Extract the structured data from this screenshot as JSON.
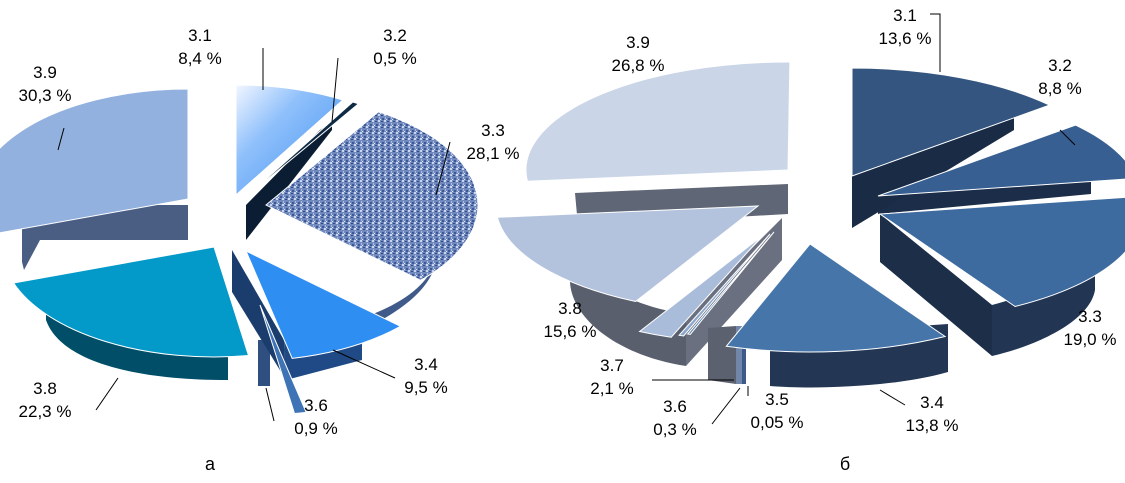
{
  "chart_data": [
    {
      "type": "pie",
      "caption": "а",
      "slices": [
        {
          "category": "3.1",
          "value": 8.4,
          "label": "8,4 %",
          "color": "#5fa2ee"
        },
        {
          "category": "3.2",
          "value": 0.5,
          "label": "0,5 %",
          "color": "#0e2a45"
        },
        {
          "category": "3.3",
          "value": 28.1,
          "label": "28,1 %",
          "color": "#7088bb"
        },
        {
          "category": "3.4",
          "value": 9.5,
          "label": "9,5 %",
          "color": "#2f8ef2"
        },
        {
          "category": "3.6",
          "value": 0.9,
          "label": "0,9 %",
          "color": "#3e74b5"
        },
        {
          "category": "3.8",
          "value": 22.3,
          "label": "22,3 %",
          "color": "#0399c8"
        },
        {
          "category": "3.9",
          "value": 30.3,
          "label": "30,3 %",
          "color": "#92b1df"
        }
      ]
    },
    {
      "type": "pie",
      "caption": "б",
      "slices": [
        {
          "category": "3.1",
          "value": 13.6,
          "label": "13,6 %",
          "color": "#33557f"
        },
        {
          "category": "3.2",
          "value": 8.8,
          "label": "8,8 %",
          "color": "#375f92"
        },
        {
          "category": "3.3",
          "value": 19.0,
          "label": "19,0 %",
          "color": "#3d6a9f"
        },
        {
          "category": "3.4",
          "value": 13.8,
          "label": "13,8 %",
          "color": "#4675aa"
        },
        {
          "category": "3.5",
          "value": 0.05,
          "label": "0,05 %",
          "color": "#5b84b6"
        },
        {
          "category": "3.6",
          "value": 0.3,
          "label": "0,3 %",
          "color": "#8da8cc"
        },
        {
          "category": "3.7",
          "value": 2.1,
          "label": "2,1 %",
          "color": "#a9bcd9"
        },
        {
          "category": "3.8",
          "value": 15.6,
          "label": "15,6 %",
          "color": "#b4c3dd"
        },
        {
          "category": "3.9",
          "value": 26.8,
          "label": "26,8 %",
          "color": "#cad5e7"
        }
      ]
    }
  ]
}
